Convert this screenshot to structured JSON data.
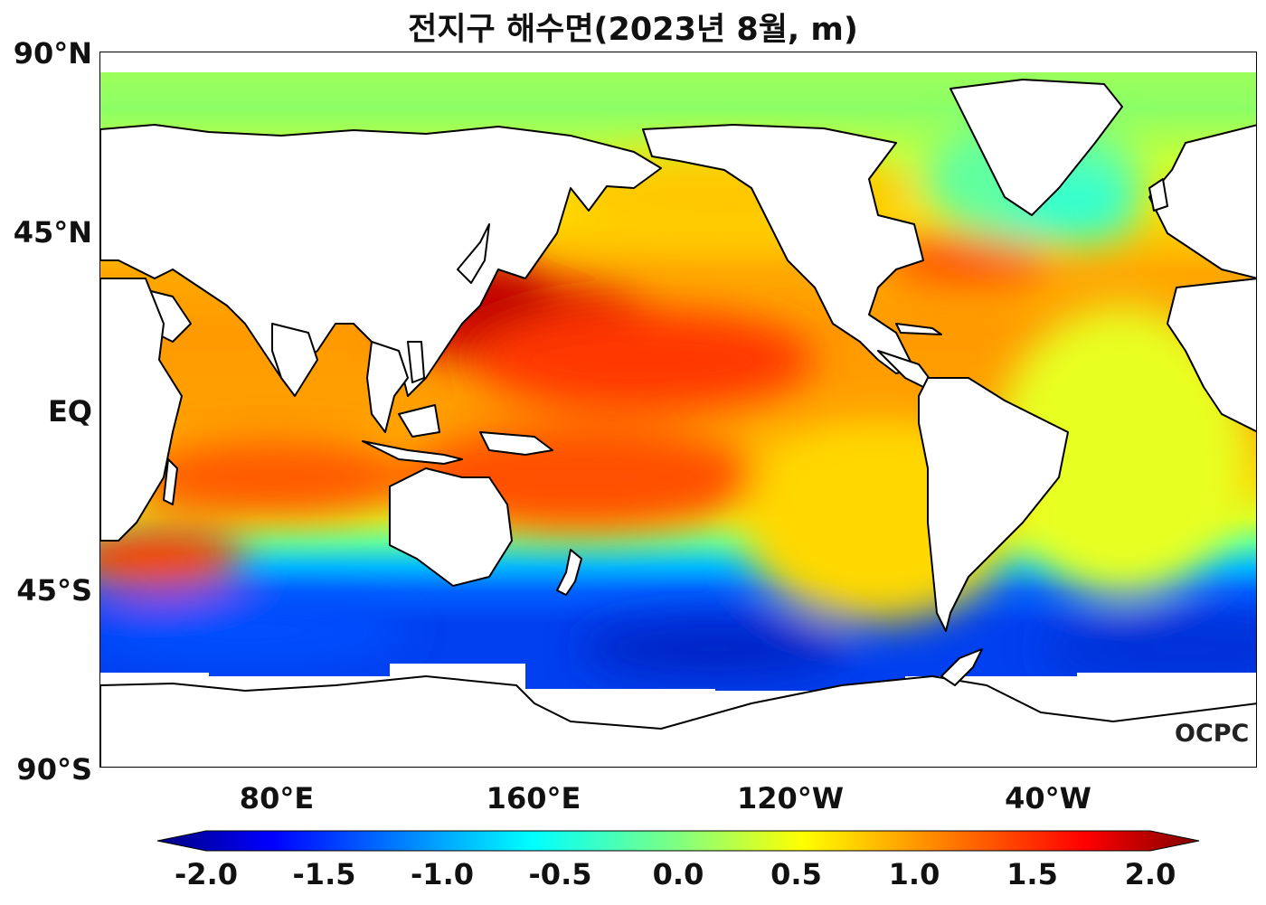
{
  "title": "전지구 해수면(2023년 8월, m)",
  "logo_text": "OCPC",
  "lat_labels": [
    "90°N",
    "45°N",
    "EQ",
    "45°S",
    "90°S"
  ],
  "lon_labels": [
    "80°E",
    "160°E",
    "120°W",
    "40°W"
  ],
  "colorbar": {
    "min": -2.0,
    "max": 2.0,
    "ticks": [
      "-2.0",
      "-1.5",
      "-1.0",
      "-0.5",
      "0.0",
      "0.5",
      "1.0",
      "1.5",
      "2.0"
    ],
    "colormap": "jet",
    "extend": "both"
  },
  "colors": {
    "land": "#ffffff",
    "coastline": "#000000",
    "no_data": "#ffffff"
  }
}
